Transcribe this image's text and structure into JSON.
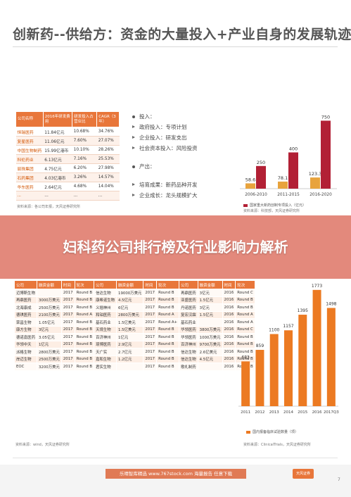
{
  "title": "创新药--供给方：资金的大量投入+产业自身的发展轨迹",
  "banner": "妇科药公司排行榜及行业影响力解析",
  "table1": {
    "headers": [
      "公司名称",
      "2016年研发费用",
      "研发投入占营业比",
      "CAGR（3年）"
    ],
    "rows": [
      [
        "恒瑞医药",
        "11.84亿元",
        "10.68%",
        "34.76%"
      ],
      [
        "复星医药",
        "11.06亿元",
        "7.60%",
        "27.07%"
      ],
      [
        "中国生物制药",
        "15.99亿港币",
        "10.10%",
        "28.26%"
      ],
      [
        "科伦药业",
        "6.13亿元",
        "7.16%",
        "25.53%"
      ],
      [
        "丽珠集团",
        "4.75亿元",
        "6.20%",
        "27.98%"
      ],
      [
        "石药集团",
        "4.03亿港币",
        "3.26%",
        "14.57%"
      ],
      [
        "华东医药",
        "2.64亿元",
        "4.68%",
        "14.04%"
      ],
      [
        "...",
        "...",
        "...",
        "..."
      ]
    ],
    "source": "资料来源：各公司年报，天风证券研究所"
  },
  "bullets": [
    {
      "text": "投入：",
      "level": 0
    },
    {
      "text": "政府投入：专项计划",
      "level": 1
    },
    {
      "text": "企业投入：研发支出",
      "level": 1
    },
    {
      "text": "社会资本投入：风险投资",
      "level": 1
    },
    {
      "text": "",
      "level": -1
    },
    {
      "text": "产出：",
      "level": 0
    },
    {
      "text": "",
      "level": -1
    },
    {
      "text": "培育成果：新药品种开发",
      "level": 1
    },
    {
      "text": "企业成长：龙头规模扩大",
      "level": 1
    }
  ],
  "chart1_legend": "国家重大新药创制专项投入（亿元）",
  "chart1_source": "资料来源：科技部，天风证券研究所",
  "table2": {
    "headers": [
      "公司",
      "融资金额",
      "时间",
      "轮次",
      "公司",
      "融资金额",
      "时间",
      "轮次",
      "公司",
      "融资金额",
      "时间",
      "轮次"
    ],
    "rows": [
      [
        "迈博斯生物",
        "",
        "2017",
        "Round B",
        "信达生物",
        "19000万美元",
        "2017",
        "Round B",
        "再鼎医药",
        "3亿元",
        "2016",
        "Round C"
      ],
      [
        "再鼎医药",
        "3000万美元",
        "2017",
        "Round B",
        "康希诺生物",
        "4.5亿元",
        "2017",
        "Round B",
        "亚盛医药",
        "1.5亿元",
        "2016",
        "Round B"
      ],
      [
        "北海康成",
        "2500万美元",
        "2017",
        "Round B",
        "义翘神州",
        "6亿元",
        "2017",
        "Round B",
        "丹诺医药",
        "3亿元",
        "2016",
        "Round B"
      ],
      [
        "德琪医药",
        "2100万美元",
        "2017",
        "Round A",
        "和铂医药",
        "2800万美元",
        "2017",
        "Round A",
        "复宏汉霖",
        "1.5亿元",
        "2016",
        "Round A"
      ],
      [
        "荣昌生物",
        "1.05亿元",
        "2017",
        "Round B",
        "基石药业",
        "1.5亿美元",
        "2017",
        "Round A+",
        "基石药业",
        "",
        "2016",
        "Round A"
      ],
      [
        "康方生物",
        "3亿元",
        "2017",
        "Round B",
        "天境生物",
        "1.5亿美元",
        "2017",
        "Round B",
        "华领医药",
        "3800万美元",
        "2016",
        "Round C"
      ],
      [
        "德诺嘉医药",
        "3.05亿元",
        "2017",
        "Round B",
        "百济神州",
        "1亿元",
        "2017",
        "Round B",
        "华领医药",
        "1000万美元",
        "2016",
        "Round B"
      ],
      [
        "华领中天",
        "1亿元",
        "2017",
        "Round B",
        "璟博医药",
        "2.9亿元",
        "2017",
        "Round B",
        "百济神州",
        "9700万美元",
        "2016",
        "Round B"
      ],
      [
        "派格生物",
        "2800万美元",
        "2017",
        "Round B",
        "天广实",
        "2.7亿元",
        "2017",
        "Round B",
        "信达生物",
        "2.6亿美元",
        "2016",
        "Round B"
      ],
      [
        "岸迈生物",
        "2500万美元",
        "2017",
        "Round B",
        "嘉和生物",
        "1.2亿元",
        "2017",
        "Round B",
        "信达生物",
        "4.5亿元",
        "2016",
        "Round B"
      ],
      [
        "EOC",
        "3200万美元",
        "2017",
        "Round B",
        "君实生物",
        "",
        "2017",
        "Round B",
        "歌礼制药",
        "",
        "2016",
        "Round B"
      ]
    ],
    "source": "资料来源：wind，天风证券研究所"
  },
  "chart2_legend": "国内报备临床试验数量（项）",
  "chart2_source": "资料来源：ClinicalTrials，天风证券研究所",
  "footer_text": "乐晴智库精选  www.767stock.com  海量报告 任意下载",
  "footer_logo": "天风证券",
  "page_no": "7",
  "chart_data": [
    {
      "type": "bar",
      "categories": [
        "2006-2010",
        "2011-2015",
        "2016-2020"
      ],
      "series": [
        {
          "values": [
            58.6,
            78.1,
            123.3
          ],
          "color": "#e8a33d"
        },
        {
          "values": [
            250,
            400,
            750
          ],
          "color": "#b22035"
        }
      ],
      "ylim": [
        0,
        800
      ]
    },
    {
      "type": "bar",
      "categories": [
        "2011",
        "2012",
        "2013",
        "2014",
        "2015",
        "2016",
        "2017Q3"
      ],
      "values": [
        683,
        859,
        1100,
        1157,
        1395,
        1773,
        1498
      ],
      "color": "#ec7a22",
      "ylim": [
        0,
        1900
      ]
    }
  ]
}
